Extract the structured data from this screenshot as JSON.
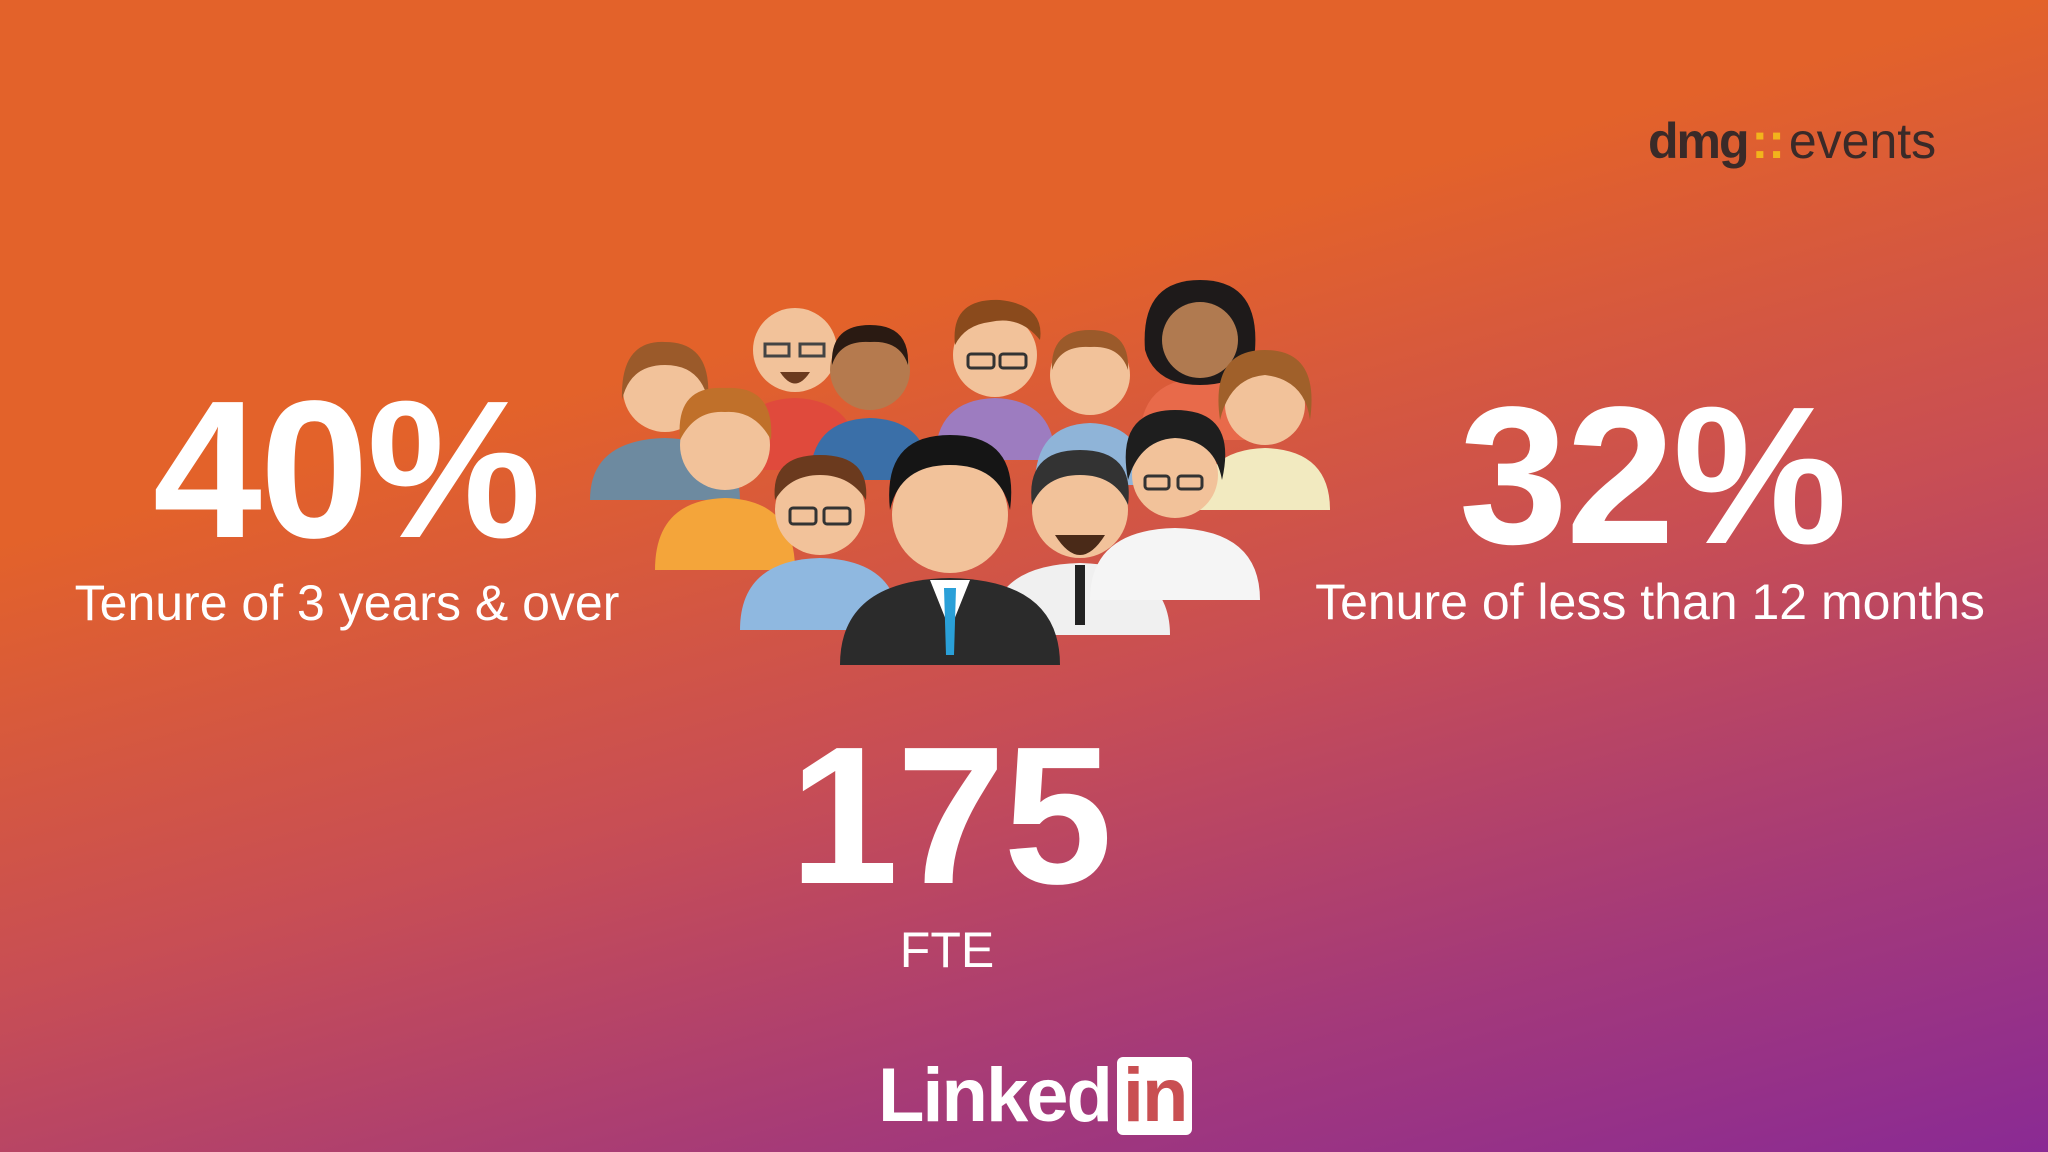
{
  "logo": {
    "brand": "dmg",
    "name": "events"
  },
  "stats": [
    {
      "value": "40%",
      "label": "Tenure of 3 years & over"
    },
    {
      "value": "32%",
      "label": "Tenure of less than 12 months"
    },
    {
      "value": "175",
      "label": "FTE"
    }
  ],
  "footer": {
    "word": "Linked",
    "badge": "in"
  }
}
